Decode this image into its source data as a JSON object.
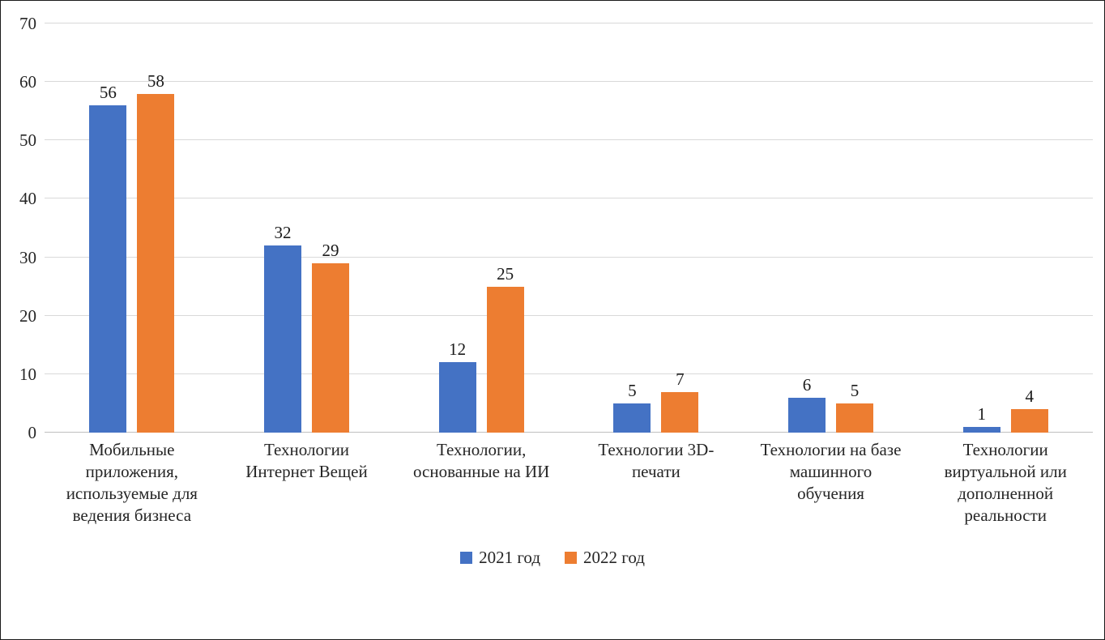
{
  "chart_data": {
    "type": "bar",
    "title": "",
    "xlabel": "",
    "ylabel": "",
    "ylim": [
      0,
      70
    ],
    "ytick_step": 10,
    "grid": "horizontal",
    "gridline_color": "#d9d9d9",
    "legend_position": "bottom",
    "categories": [
      "Мобильные приложения, используемые для ведения бизнеса",
      "Технологии Интернет Вещей",
      "Технологии, основанные на ИИ",
      "Технологии 3D-печати",
      "Технологии на базе машинного обучения",
      "Технологии виртуальной или дополненной реальности"
    ],
    "series": [
      {
        "name": "2021 год",
        "color": "#4472C4",
        "values": [
          56,
          32,
          12,
          5,
          6,
          1
        ]
      },
      {
        "name": "2022 год",
        "color": "#ED7D31",
        "values": [
          58,
          29,
          25,
          7,
          5,
          4
        ]
      }
    ]
  }
}
